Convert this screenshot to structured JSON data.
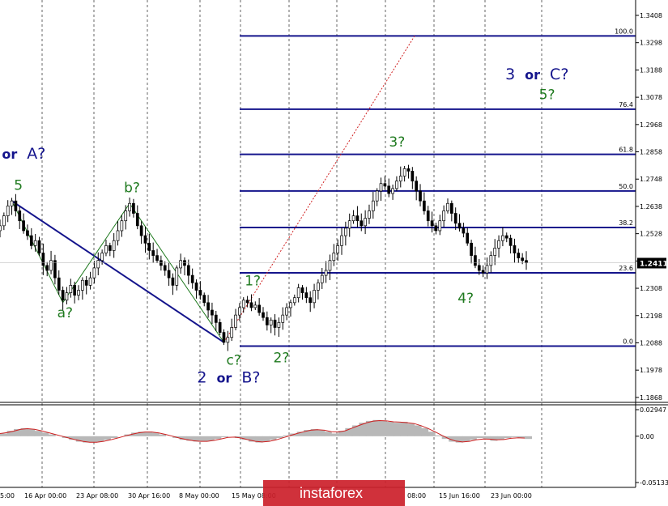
{
  "chart_data": [
    {
      "type": "candlestick",
      "price_axis": {
        "ticks": [
          "1.3408",
          "1.3298",
          "1.3188",
          "1.3078",
          "1.2968",
          "1.2858",
          "1.2748",
          "1.2638",
          "1.2528",
          "1.2418",
          "1.2308",
          "1.2198",
          "1.2088",
          "1.1978",
          "1.1868"
        ],
        "tick_values": [
          1.3408,
          1.3298,
          1.3188,
          1.3078,
          1.2968,
          1.2858,
          1.2748,
          1.2638,
          1.2528,
          1.2418,
          1.2308,
          1.2198,
          1.2088,
          1.1978,
          1.1868
        ],
        "ylim": [
          1.1848,
          1.347
        ]
      },
      "time_axis": {
        "ticks": [
          "5:00",
          "16 Apr 00:00",
          "23 Apr 08:00",
          "30 Apr 16:00",
          "8 May 00:00",
          "15 May 08:00",
          "08:00",
          "15 Jun 16:00",
          "23 Jun 00:00"
        ]
      },
      "current_price": "1.2411",
      "current_price_value": 1.2411,
      "fibonacci": {
        "levels": [
          {
            "label": "100.0",
            "price": 1.3325
          },
          {
            "label": "76.4",
            "price": 1.303
          },
          {
            "label": "61.8",
            "price": 1.2848
          },
          {
            "label": "50.0",
            "price": 1.27
          },
          {
            "label": "38.2",
            "price": 1.2553
          },
          {
            "label": "23.6",
            "price": 1.237
          },
          {
            "label": "0.0",
            "price": 1.2075
          }
        ]
      },
      "series_close": [
        1.256,
        1.26,
        1.264,
        1.266,
        1.262,
        1.258,
        1.254,
        1.252,
        1.248,
        1.25,
        1.245,
        1.24,
        1.238,
        1.242,
        1.235,
        1.23,
        1.226,
        1.229,
        1.232,
        1.228,
        1.23,
        1.234,
        1.232,
        1.235,
        1.239,
        1.242,
        1.245,
        1.248,
        1.246,
        1.25,
        1.254,
        1.258,
        1.262,
        1.265,
        1.261,
        1.256,
        1.252,
        1.249,
        1.246,
        1.244,
        1.242,
        1.24,
        1.238,
        1.235,
        1.232,
        1.239,
        1.242,
        1.24,
        1.236,
        1.233,
        1.23,
        1.228,
        1.225,
        1.222,
        1.22,
        1.217,
        1.213,
        1.209,
        1.211,
        1.215,
        1.22,
        1.223,
        1.226,
        1.225,
        1.223,
        1.224,
        1.221,
        1.219,
        1.216,
        1.218,
        1.215,
        1.217,
        1.22,
        1.223,
        1.225,
        1.227,
        1.231,
        1.229,
        1.227,
        1.225,
        1.23,
        1.233,
        1.236,
        1.238,
        1.242,
        1.245,
        1.248,
        1.252,
        1.255,
        1.258,
        1.26,
        1.258,
        1.256,
        1.259,
        1.262,
        1.266,
        1.27,
        1.273,
        1.272,
        1.269,
        1.271,
        1.274,
        1.276,
        1.279,
        1.278,
        1.274,
        1.27,
        1.266,
        1.262,
        1.258,
        1.256,
        1.254,
        1.258,
        1.262,
        1.265,
        1.261,
        1.257,
        1.255,
        1.253,
        1.249,
        1.244,
        1.24,
        1.238,
        1.237,
        1.24,
        1.244,
        1.247,
        1.25,
        1.252,
        1.251,
        1.248,
        1.245,
        1.243,
        1.242,
        1.2411
      ],
      "oscillator": {
        "ticks": [
          "0.02947",
          "0.00",
          "-0.05133"
        ],
        "tick_values": [
          0.02947,
          0.0,
          -0.05133
        ],
        "values": [
          0.003,
          0.006,
          0.008,
          0.009,
          0.008,
          0.006,
          0.004,
          0.002,
          0.0,
          -0.002,
          -0.004,
          -0.006,
          -0.007,
          -0.007,
          -0.006,
          -0.004,
          -0.002,
          0.0,
          0.002,
          0.004,
          0.005,
          0.005,
          0.004,
          0.002,
          0.0,
          -0.002,
          -0.004,
          -0.005,
          -0.006,
          -0.006,
          -0.005,
          -0.003,
          -0.001,
          0.0,
          -0.002,
          -0.004,
          -0.006,
          -0.007,
          -0.006,
          -0.004,
          -0.002,
          0.001,
          0.003,
          0.005,
          0.007,
          0.008,
          0.007,
          0.005,
          0.003,
          0.006,
          0.009,
          0.012,
          0.015,
          0.017,
          0.018,
          0.017,
          0.016,
          0.015,
          0.016,
          0.014,
          0.012,
          0.009,
          0.005,
          0.001,
          -0.003,
          -0.006,
          -0.007,
          -0.006,
          -0.004,
          -0.002,
          -0.003,
          -0.005,
          -0.004,
          -0.002,
          -0.001,
          -0.002,
          -0.003
        ]
      },
      "wave_labels": [
        {
          "text": "5",
          "style": "green",
          "time_frac": 0.022,
          "price": 1.2705
        },
        {
          "text": "a?",
          "style": "green",
          "time_frac": 0.09,
          "price": 1.219
        },
        {
          "text": "b?",
          "style": "green",
          "time_frac": 0.195,
          "price": 1.2695
        },
        {
          "text": "c?",
          "style": "green",
          "time_frac": 0.356,
          "price": 1.2
        },
        {
          "text": "1?",
          "style": "green",
          "time_frac": 0.385,
          "price": 1.232
        },
        {
          "text": "2?",
          "style": "green",
          "time_frac": 0.43,
          "price": 1.201
        },
        {
          "text": "3?",
          "style": "green",
          "time_frac": 0.612,
          "price": 1.288
        },
        {
          "text": "4?",
          "style": "green",
          "time_frac": 0.72,
          "price": 1.225
        },
        {
          "text": "5?",
          "style": "green",
          "time_frac": 0.848,
          "price": 1.307
        }
      ],
      "wave_captions": [
        {
          "parts": [
            "or",
            "A?"
          ],
          "time_frac": 0.003,
          "price": 1.283
        },
        {
          "parts": [
            "2",
            "or",
            "B?"
          ],
          "time_frac": 0.31,
          "price": 1.1928
        },
        {
          "parts": [
            "3",
            "or",
            "C?"
          ],
          "time_frac": 0.795,
          "price": 1.315
        }
      ]
    }
  ],
  "watermark": {
    "text": "instaforex"
  }
}
